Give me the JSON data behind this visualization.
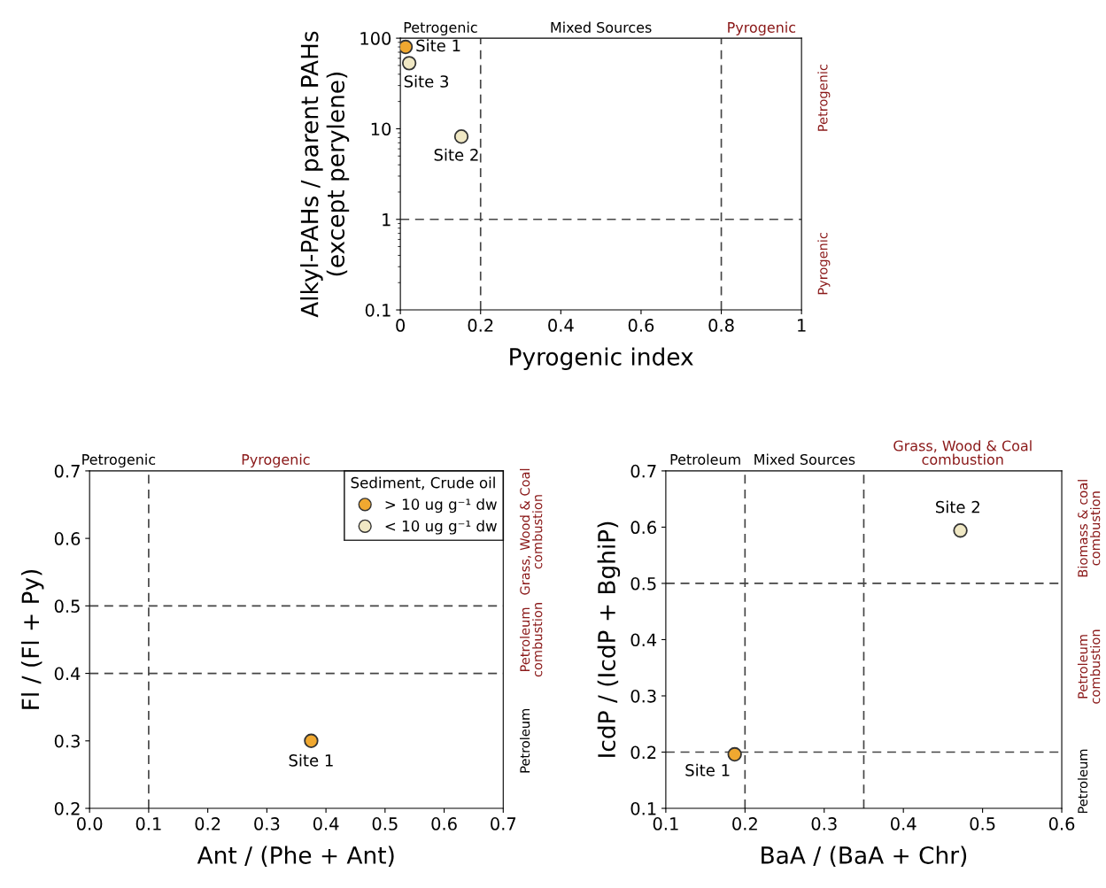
{
  "chart_data": [
    {
      "type": "scatter",
      "xlabel": "Pyrogenic index",
      "ylabel": "Alkyl-PAHs / parent PAHs\n(except perylene)",
      "log": "y",
      "marker": "circle",
      "grid": false,
      "legend": false,
      "xlim": [
        0,
        1
      ],
      "xticks": [
        0,
        0.2,
        0.4,
        0.6,
        0.8,
        1
      ],
      "ylim": [
        0.1,
        100
      ],
      "yticks": [
        0.1,
        1,
        10,
        100
      ],
      "series": [
        {
          "color": "#f0a830",
          "x": [
            0.013
          ],
          "values": [
            80
          ]
        },
        {
          "color": "#f0e8c4",
          "x": [
            0.152,
            0.022
          ],
          "values": [
            8.2,
            53
          ]
        }
      ],
      "annotations": [
        {
          "text": "Site 1",
          "x": 0.013,
          "y": 80
        },
        {
          "text": "Site 2",
          "x": 0.152,
          "y": 8.2
        },
        {
          "text": "Site 3",
          "x": 0.022,
          "y": 53
        },
        "Petrogenic",
        "Mixed Sources",
        "Pyrogenic",
        "Petrogenic",
        "Pyrogenic"
      ],
      "ref_lines": [
        {
          "axis": "x",
          "value": 0.2,
          "line_style": "dashed"
        },
        {
          "axis": "x",
          "value": 0.8,
          "line_style": "dashed"
        },
        {
          "axis": "y",
          "value": 1,
          "line_style": "dashed"
        }
      ]
    },
    {
      "type": "scatter",
      "xlabel": "Ant / (Phe + Ant)",
      "ylabel": "Fl / (Fl + Py)",
      "marker": "circle",
      "grid": false,
      "legend": "top right",
      "legend_title": "Sediment, Crude oil",
      "xlim": [
        0,
        0.7
      ],
      "xticks": [
        {
          "value": 0,
          "label": "0.0"
        },
        0.1,
        0.2,
        0.3,
        0.4,
        0.5,
        0.6,
        0.7
      ],
      "ylim": [
        0.2,
        0.7
      ],
      "yticks": [
        0.2,
        0.3,
        0.4,
        0.5,
        0.6,
        0.7
      ],
      "series": [
        {
          "name": "> 10 ug g⁻¹ dw",
          "color": "#f0a830",
          "x": [
            0.375
          ],
          "values": [
            0.3
          ]
        },
        {
          "name": "< 10 ug g⁻¹ dw",
          "color": "#f0e8c4"
        }
      ],
      "annotations": [
        {
          "text": "Site 1",
          "x": 0.375,
          "y": 0.3
        },
        "Petrogenic",
        "Pyrogenic",
        "Petroleum",
        "Petroleum\ncombustion",
        "Grass, Wood & Coal\ncombustion"
      ],
      "ref_lines": [
        {
          "axis": "x",
          "value": 0.1,
          "line_style": "dashed"
        },
        {
          "axis": "y",
          "value": 0.4,
          "line_style": "dashed"
        },
        {
          "axis": "y",
          "value": 0.5,
          "line_style": "dashed"
        }
      ]
    },
    {
      "type": "scatter",
      "xlabel": "BaA / (BaA + Chr)",
      "ylabel": "IcdP / (IcdP + BghiP)",
      "marker": "circle",
      "grid": false,
      "legend": false,
      "xlim": [
        0.1,
        0.6
      ],
      "xticks": [
        0.1,
        0.2,
        0.3,
        0.4,
        0.5,
        0.6
      ],
      "ylim": [
        0.1,
        0.7
      ],
      "yticks": [
        0.1,
        0.2,
        0.3,
        0.4,
        0.5,
        0.6,
        0.7
      ],
      "series": [
        {
          "color": "#f0a830",
          "x": [
            0.187
          ],
          "values": [
            0.196
          ]
        },
        {
          "color": "#f0e8c4",
          "x": [
            0.472
          ],
          "values": [
            0.594
          ]
        }
      ],
      "annotations": [
        {
          "text": "Site 1",
          "x": 0.187,
          "y": 0.196
        },
        {
          "text": "Site 2",
          "x": 0.472,
          "y": 0.594
        },
        "Petroleum",
        "Mixed Sources",
        "Grass, Wood & Coal\ncombustion",
        "Petroleum",
        "Petroleum\ncombustion",
        "Biomass & coal\ncombustion"
      ],
      "ref_lines": [
        {
          "axis": "x",
          "value": 0.2,
          "line_style": "dashed"
        },
        {
          "axis": "x",
          "value": 0.35,
          "line_style": "dashed"
        },
        {
          "axis": "y",
          "value": 0.2,
          "line_style": "dashed"
        },
        {
          "axis": "y",
          "value": 0.5,
          "line_style": "dashed"
        }
      ]
    }
  ]
}
